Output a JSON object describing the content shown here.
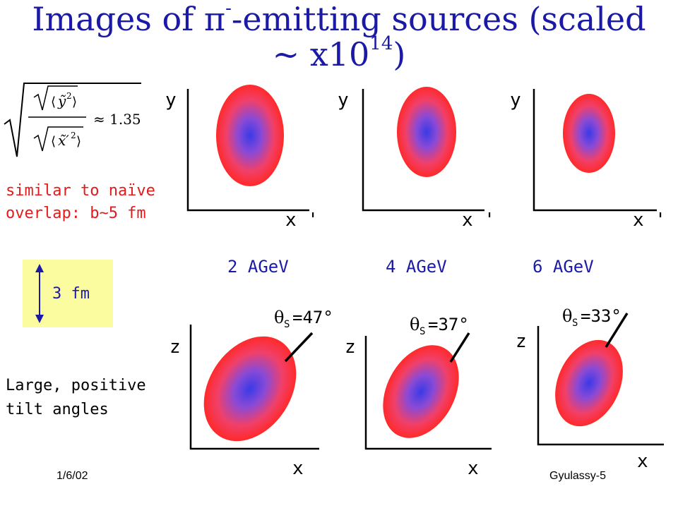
{
  "title_main": "Images of π",
  "title_sup_minus": "-",
  "title_rest": "-emitting sources (scaled ~ x10",
  "title_sup_14": "14",
  "title_close": ")",
  "formula": {
    "ytilde": "ỹ",
    "y_sq": "2",
    "xprime": "x̃′",
    "x_sq": "2",
    "approx": "≈ 1.35"
  },
  "note_overlap_line1": "similar to naïve",
  "note_overlap_line2": "overlap: b~5 fm",
  "note_tilt_line1": "Large, positive",
  "note_tilt_line2": "tilt angles",
  "scale_label": "3 fm",
  "energies": [
    "2 AGeV",
    "4 AGeV",
    "6 AGeV"
  ],
  "top_axis_y": "y",
  "top_axis_x": "x '",
  "bottom_axis_z": "z",
  "bottom_axis_x": "x",
  "theta_symbol": "θ",
  "theta_sub": "S",
  "tilt_values": [
    "=47°",
    "=37°",
    "=33°"
  ],
  "footer_left": "1/6/02",
  "footer_right": "Gyulassy-5",
  "colors": {
    "title": "#1a1aa6",
    "note": "#e21b1b",
    "source_core": "#3a3ae6",
    "source_edge": "#ff2a2a",
    "scale_bg": "#fbfba0"
  }
}
